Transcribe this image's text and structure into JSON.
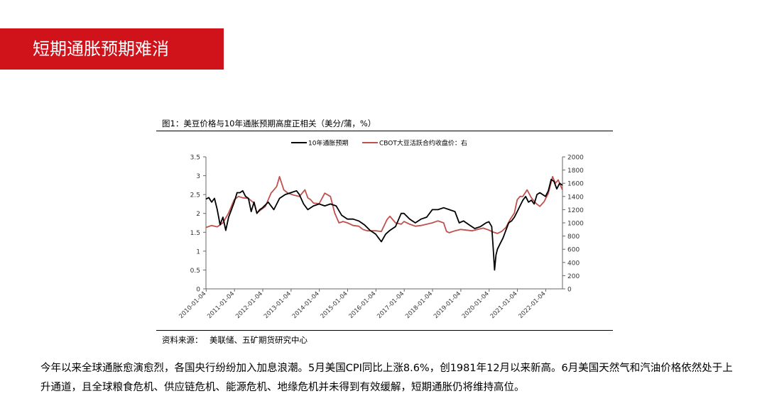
{
  "header": {
    "title": "短期通胀预期难消"
  },
  "figure": {
    "title": "图1：美豆价格与10年通胀预期高度正相关（美分/蒲，%）",
    "source_label": "资料来源：",
    "source": "美联储、五矿期货研究中心"
  },
  "body": {
    "paragraph": "今年以来全球通胀愈演愈烈，各国央行纷纷加入加息浪潮。5月美国CPI同比上涨8.6%，创1981年12月以来新高。6月美国天然气和汽油价格依然处于上升通道，且全球粮食危机、供应链危机、能源危机、地缘危机并未得到有效缓解，短期通胀仍将维持高位。"
  },
  "colors": {
    "banner": "#d0121b",
    "series_left": "#000000",
    "series_right": "#c0504d"
  },
  "chart_data": {
    "type": "line",
    "legend_position": "top",
    "grid": false,
    "x_tick_labels": [
      "2010-01-04",
      "2011-01-04",
      "2012-01-04",
      "2013-01-04",
      "2014-01-04",
      "2015-01-04",
      "2016-01-04",
      "2017-01-04",
      "2018-01-04",
      "2019-01-04",
      "2020-01-04",
      "2021-01-04",
      "2022-01-04"
    ],
    "x_range": [
      2010.0,
      2022.6
    ],
    "left_axis": {
      "range": [
        0,
        3.5
      ],
      "ticks": [
        "0",
        "0.5",
        "1",
        "1.5",
        "2",
        "2.5",
        "3",
        "3.5"
      ]
    },
    "right_axis": {
      "range": [
        0,
        2000
      ],
      "ticks": [
        "0",
        "200",
        "400",
        "600",
        "800",
        "1000",
        "1200",
        "1400",
        "1600",
        "1800",
        "2000"
      ]
    },
    "series": [
      {
        "name": "10年通胀预期",
        "axis": "left",
        "color": "#000000",
        "x": [
          2010.0,
          2010.1,
          2010.2,
          2010.3,
          2010.4,
          2010.5,
          2010.6,
          2010.7,
          2010.8,
          2010.9,
          2011.0,
          2011.1,
          2011.2,
          2011.3,
          2011.4,
          2011.5,
          2011.6,
          2011.7,
          2011.8,
          2011.9,
          2012.0,
          2012.2,
          2012.4,
          2012.6,
          2012.8,
          2013.0,
          2013.2,
          2013.3,
          2013.45,
          2013.6,
          2013.8,
          2014.0,
          2014.2,
          2014.4,
          2014.6,
          2014.8,
          2015.0,
          2015.2,
          2015.4,
          2015.6,
          2015.8,
          2016.0,
          2016.1,
          2016.2,
          2016.35,
          2016.5,
          2016.7,
          2016.9,
          2017.0,
          2017.2,
          2017.4,
          2017.6,
          2017.8,
          2018.0,
          2018.2,
          2018.4,
          2018.6,
          2018.8,
          2018.95,
          2019.1,
          2019.3,
          2019.5,
          2019.7,
          2019.9,
          2020.0,
          2020.1,
          2020.15,
          2020.2,
          2020.25,
          2020.3,
          2020.4,
          2020.5,
          2020.6,
          2020.7,
          2020.8,
          2020.9,
          2021.0,
          2021.1,
          2021.2,
          2021.3,
          2021.4,
          2021.5,
          2021.6,
          2021.7,
          2021.8,
          2021.9,
          2022.0,
          2022.1,
          2022.2,
          2022.3,
          2022.4,
          2022.5,
          2022.6
        ],
        "values": [
          2.38,
          2.42,
          2.3,
          2.4,
          2.1,
          1.7,
          1.9,
          1.55,
          1.9,
          2.1,
          2.3,
          2.55,
          2.55,
          2.6,
          2.45,
          2.4,
          2.05,
          2.3,
          2.0,
          2.1,
          2.15,
          2.3,
          2.1,
          2.4,
          2.5,
          2.55,
          2.6,
          2.5,
          2.25,
          2.1,
          2.2,
          2.25,
          2.2,
          2.25,
          2.2,
          1.95,
          1.85,
          1.85,
          1.8,
          1.7,
          1.55,
          1.45,
          1.35,
          1.25,
          1.45,
          1.55,
          1.65,
          2.0,
          2.0,
          1.85,
          1.75,
          1.85,
          1.9,
          2.1,
          2.1,
          2.15,
          2.1,
          2.05,
          1.75,
          1.8,
          1.7,
          1.6,
          1.65,
          1.75,
          1.78,
          1.65,
          1.1,
          0.5,
          0.9,
          1.05,
          1.2,
          1.35,
          1.55,
          1.75,
          1.8,
          1.9,
          2.05,
          2.2,
          2.35,
          2.45,
          2.3,
          2.35,
          2.25,
          2.5,
          2.55,
          2.5,
          2.45,
          2.6,
          2.9,
          2.85,
          2.65,
          2.8,
          2.75
        ]
      },
      {
        "name": "CBOT大豆活跃合约收盘价：右",
        "axis": "right",
        "color": "#c0504d",
        "x": [
          2010.0,
          2010.2,
          2010.4,
          2010.6,
          2010.8,
          2011.0,
          2011.15,
          2011.3,
          2011.5,
          2011.7,
          2011.8,
          2011.95,
          2012.1,
          2012.3,
          2012.5,
          2012.6,
          2012.75,
          2012.9,
          2013.1,
          2013.3,
          2013.5,
          2013.6,
          2013.7,
          2013.8,
          2014.0,
          2014.2,
          2014.4,
          2014.55,
          2014.7,
          2014.85,
          2015.0,
          2015.2,
          2015.4,
          2015.55,
          2015.7,
          2015.85,
          2016.0,
          2016.2,
          2016.4,
          2016.5,
          2016.7,
          2016.9,
          2017.0,
          2017.2,
          2017.4,
          2017.6,
          2017.8,
          2018.0,
          2018.2,
          2018.4,
          2018.5,
          2018.6,
          2018.8,
          2019.0,
          2019.2,
          2019.4,
          2019.6,
          2019.8,
          2020.0,
          2020.15,
          2020.3,
          2020.45,
          2020.6,
          2020.75,
          2020.9,
          2021.0,
          2021.1,
          2021.2,
          2021.35,
          2021.5,
          2021.65,
          2021.8,
          2021.95,
          2022.1,
          2022.25,
          2022.35,
          2022.45,
          2022.6
        ],
        "values": [
          930,
          960,
          940,
          1000,
          1150,
          1350,
          1400,
          1380,
          1370,
          1300,
          1150,
          1200,
          1250,
          1450,
          1550,
          1700,
          1500,
          1450,
          1420,
          1400,
          1500,
          1380,
          1350,
          1300,
          1290,
          1450,
          1400,
          1150,
          1000,
          1020,
          1000,
          960,
          950,
          900,
          880,
          880,
          880,
          870,
          1050,
          1100,
          1000,
          980,
          1020,
          980,
          950,
          960,
          980,
          1000,
          1030,
          1000,
          870,
          850,
          880,
          900,
          890,
          880,
          900,
          920,
          890,
          860,
          840,
          870,
          930,
          1050,
          1150,
          1350,
          1400,
          1400,
          1500,
          1380,
          1300,
          1250,
          1320,
          1450,
          1700,
          1600,
          1650,
          1500
        ]
      }
    ]
  }
}
